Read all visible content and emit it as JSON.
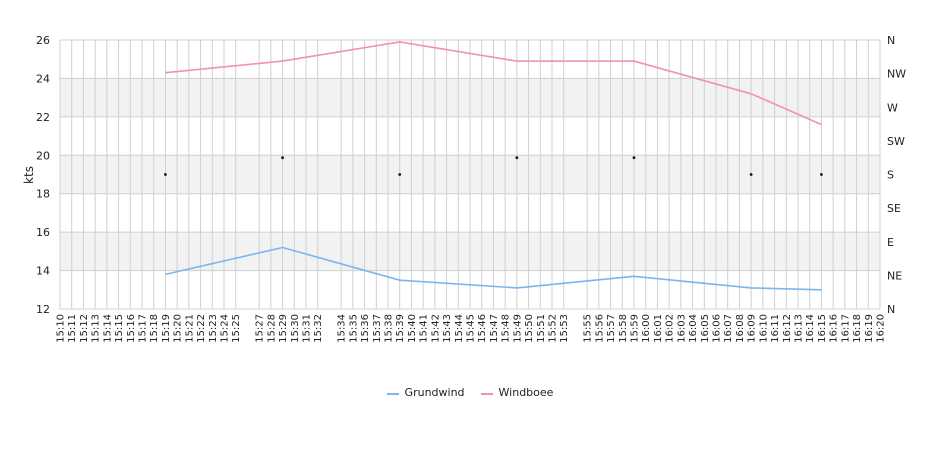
{
  "chart_data": {
    "type": "line",
    "xlabel": "",
    "ylabel": "kts",
    "ylim": [
      12,
      26
    ],
    "yticks": [
      12,
      14,
      16,
      18,
      20,
      22,
      24,
      26
    ],
    "right_axis_labels": [
      "N",
      "NE",
      "E",
      "SE",
      "S",
      "SW",
      "W",
      "NW",
      "N"
    ],
    "x_ticks": [
      "15:10",
      "15:11",
      "15:12",
      "15:13",
      "15:14",
      "15:15",
      "15:16",
      "15:17",
      "15:18",
      "15:19",
      "15:20",
      "15:21",
      "15:22",
      "15:23",
      "15:24",
      "15:25",
      "15:27",
      "15:28",
      "15:29",
      "15:30",
      "15:31",
      "15:32",
      "15:34",
      "15:35",
      "15:36",
      "15:37",
      "15:38",
      "15:39",
      "15:40",
      "15:41",
      "15:42",
      "15:43",
      "15:44",
      "15:45",
      "15:46",
      "15:47",
      "15:48",
      "15:49",
      "15:50",
      "15:51",
      "15:52",
      "15:53",
      "15:55",
      "15:56",
      "15:57",
      "15:58",
      "15:59",
      "16:00",
      "16:01",
      "16:02",
      "16:03",
      "16:04",
      "16:05",
      "16:06",
      "16:07",
      "16:08",
      "16:09",
      "16:10",
      "16:11",
      "16:12",
      "16:13",
      "16:14",
      "16:15",
      "16:16",
      "16:17",
      "16:18",
      "16:19",
      "16:20"
    ],
    "series": [
      {
        "name": "Grundwind",
        "color": "#7cb5ec",
        "x": [
          "15:19",
          "15:29",
          "15:39",
          "15:49",
          "15:59",
          "16:09",
          "16:15"
        ],
        "values": [
          13.8,
          15.2,
          13.5,
          13.1,
          13.7,
          13.1,
          13.0
        ]
      },
      {
        "name": "Windboee",
        "color": "#f28fbd",
        "x": [
          "15:19",
          "15:29",
          "15:39",
          "15:49",
          "15:59",
          "16:09",
          "16:15"
        ],
        "values": [
          24.3,
          24.9,
          25.9,
          24.9,
          24.9,
          23.2,
          21.6
        ]
      }
    ],
    "direction_markers": {
      "x": [
        "15:19",
        "15:29",
        "15:39",
        "15:49",
        "15:59",
        "16:09",
        "16:15"
      ],
      "values": [
        "S",
        "SSW",
        "S",
        "SSW",
        "SSW",
        "S",
        "S"
      ]
    },
    "bands": [
      [
        14,
        16
      ],
      [
        18,
        20
      ],
      [
        22,
        24
      ]
    ],
    "band_color": "#f2f2f2",
    "grid_color": "#d0d0d0",
    "legend_position": "bottom"
  }
}
